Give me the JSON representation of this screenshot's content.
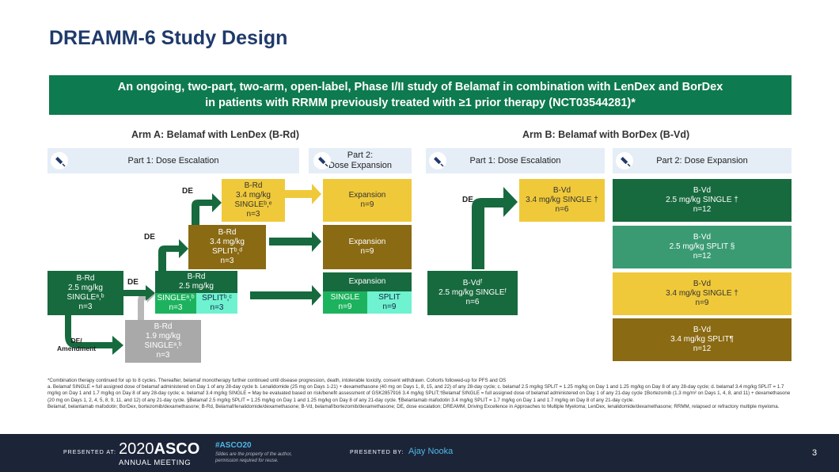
{
  "title": "DREAMM-6 Study Design",
  "banner": {
    "line1": "An ongoing, two-part, two-arm, open-label, Phase I/II study of Belamaf in combination with LenDex and BorDex",
    "line2": "in patients with RRMM previously treated with ≥1 prior therapy (NCT03544281)*"
  },
  "armA": {
    "heading": "Arm A: Belamaf with LenDex (B-Rd)",
    "part1": "Part 1: Dose Escalation",
    "part2_l1": "Part 2:",
    "part2_l2": "Dose Expansion",
    "start": {
      "l1": "B-Rd",
      "l2": "2.5 mg/kg",
      "l3": "SINGLEᵃ,ᵇ",
      "l4": "n=3"
    },
    "lowdose": {
      "l1": "B-Rd",
      "l2": "1.9 mg/kg",
      "l3": "SINGLEᵃ,ᵇ",
      "l4": "n=3"
    },
    "mid": {
      "l1": "B-Rd",
      "l2": "2.5 mg/kg",
      "single": "SINGLEᵃ,ᵇ",
      "single_n": "n=3",
      "split": "SPLITᵇ,ᶜ",
      "split_n": "n=3"
    },
    "split34": {
      "l1": "B-Rd",
      "l2": "3.4 mg/kg",
      "l3": "SPLITᵇ,ᵈ",
      "l4": "n=3"
    },
    "single34": {
      "l1": "B-Rd",
      "l2": "3.4 mg/kg",
      "l3": "SINGLEᵇ,ᵉ",
      "l4": "n=3"
    },
    "exp1": {
      "l1": "Expansion",
      "l2": "n=9"
    },
    "exp2": {
      "l1": "Expansion",
      "l2": "n=9"
    },
    "exp3": {
      "l1": "Expansion",
      "single": "SINGLE",
      "single_n": "n=9",
      "split": "SPLIT",
      "split_n": "n=9"
    },
    "de1": "DE",
    "de2": "DE",
    "de3": "DE",
    "de_amend_l1": "DE/",
    "de_amend_l2": "Amendment"
  },
  "armB": {
    "heading": "Arm B: Belamaf with BorDex (B-Vd)",
    "part1": "Part 1: Dose Escalation",
    "part2": "Part 2: Dose Expansion",
    "start": {
      "l1": "B-Vdᶠ",
      "l2": "2.5 mg/kg SINGLEᶠ",
      "l3": "n=6"
    },
    "esc": {
      "l1": "B-Vd",
      "l2": "3.4 mg/kg SINGLE †",
      "l3": "n=6"
    },
    "de": "DE",
    "exp1": {
      "l1": "B-Vd",
      "l2": "2.5 mg/kg SINGLE †",
      "l3": "n=12"
    },
    "exp2": {
      "l1": "B-Vd",
      "l2": "2.5 mg/kg SPLIT §",
      "l3": "n=12"
    },
    "exp3": {
      "l1": "B-Vd",
      "l2": "3.4 mg/kg SINGLE †",
      "l3": "n=9"
    },
    "exp4": {
      "l1": "B-Vd",
      "l2": "3.4 mg/kg SPLIT¶",
      "l3": "n=12"
    }
  },
  "footnotes": {
    "f1": "*Combination therapy continued for up to 8 cycles. Thereafter, belamaf monotherapy further continued until disease progression, death, intolerable toxicity, consent withdrawn. Cohorts followed-up for PFS and OS",
    "f2": "a. Belamaf SINGLE = full assigned dose of belamaf administered on Day 1 of any 28-day cycle b. Lenalidomide (25 mg on Days 1-21) + dexamethasone (40 mg on Days 1, 8, 15, and 22) of any 28-day cycle; c. belamaf 2.5 mg/kg SPLIT = 1.25 mg/kg on Day 1 and 1.25 mg/kg on Day 8 of any 28-day cycle; d. belamaf 3.4 mg/kg SPLIT = 1.7 mg/kg on Day 1 and 1.7 mg/kg on Day 8 of any 28-day cycle; e. belamaf 3.4 mg/kg SINGLE = May be evaluated based on risk/benefit assessment of GSK2857916 3.4 mg/kg SPLIT;†Belamaf SINGLE = full assigned dose of belamaf administered on Day 1 of any 21-day cycle ‡Bortezomib (1.3 mg/m² on Days 1, 4, 8, and 11) + dexamethasone (20 mg on Days 1, 2, 4, 5, 8, 9, 11, and 12) of any 21-day cycle. §Belamaf 2.5 mg/kg SPLIT = 1.25 mg/kg on Day 1 and 1.25 mg/kg on Day 8 of any 21-day cycle. ¶Belantamab mafodotin 3.4 mg/kg SPLIT = 1.7 mg/kg on Day 1 and 1.7 mg/kg on Day 8 of any 21-day cycle.",
    "f3": "Belamaf, belantamab mafodotin; BorDex, bortezomib/dexamethasone; B-Rd, Belamaf/lenalidomide/dexamethasone; B-Vd, belamaf/bortezomib/dexamethasone; DE, dose escalation; DREAMM, Driving Excellence in Approaches to Multiple Myeloma; LenDex, lenalidomide/dexamethasone; RRMM, relapsed or refractory multiple myeloma."
  },
  "footer": {
    "presented_at": "PRESENTED AT:",
    "year": "2020",
    "asco": "ASCO",
    "annual": "ANNUAL MEETING",
    "hashtag": "#ASCO20",
    "note1": "Slides are the property of the author,",
    "note2": "permission required for reuse.",
    "presented_by": "PRESENTED BY:",
    "presenter": "Ajay Nooka",
    "page": "3"
  },
  "colors": {
    "title": "#1f3a6b",
    "banner": "#0e7a4f",
    "dark_green": "#176a3e",
    "yellow": "#f0c93a",
    "olive": "#8a6a12",
    "footer_bg": "#1c2438"
  }
}
